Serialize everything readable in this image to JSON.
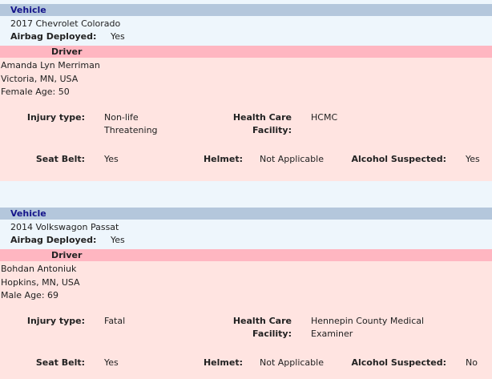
{
  "records": [
    {
      "vehicle_header": "Vehicle",
      "vehicle": "2017 Chevrolet Colorado",
      "airbag_label": "Airbag Deployed:",
      "airbag_value": "Yes",
      "driver_header": "Driver",
      "name": "Amanda Lyn Merriman",
      "location": "Victoria, MN, USA",
      "gender_age": "Female Age: 50",
      "injury_label": "Injury type:",
      "injury_line1": "Non-life",
      "injury_line2": "Threatening",
      "health_label_line1": "Health Care",
      "health_label_line2": "Facility:",
      "health_line1": "HCMC",
      "health_line2": "",
      "seatbelt_label": "Seat Belt:",
      "seatbelt_value": "Yes",
      "helmet_label": "Helmet:",
      "helmet_value": "Not Applicable",
      "alcohol_label": "Alcohol Suspected:",
      "alcohol_value": "Yes"
    },
    {
      "vehicle_header": "Vehicle",
      "vehicle": "2014 Volkswagon Passat",
      "airbag_label": "Airbag Deployed:",
      "airbag_value": "Yes",
      "driver_header": "Driver",
      "name": "Bohdan Antoniuk",
      "location": "Hopkins, MN, USA",
      "gender_age": "Male Age: 69",
      "injury_label": "Injury type:",
      "injury_line1": "Fatal",
      "injury_line2": "",
      "health_label_line1": "Health Care",
      "health_label_line2": "Facility:",
      "health_line1": "Hennepin County Medical",
      "health_line2": "Examiner",
      "seatbelt_label": "Seat Belt:",
      "seatbelt_value": "Yes",
      "helmet_label": "Helmet:",
      "helmet_value": "Not Applicable",
      "alcohol_label": "Alcohol Suspected:",
      "alcohol_value": "No"
    }
  ]
}
